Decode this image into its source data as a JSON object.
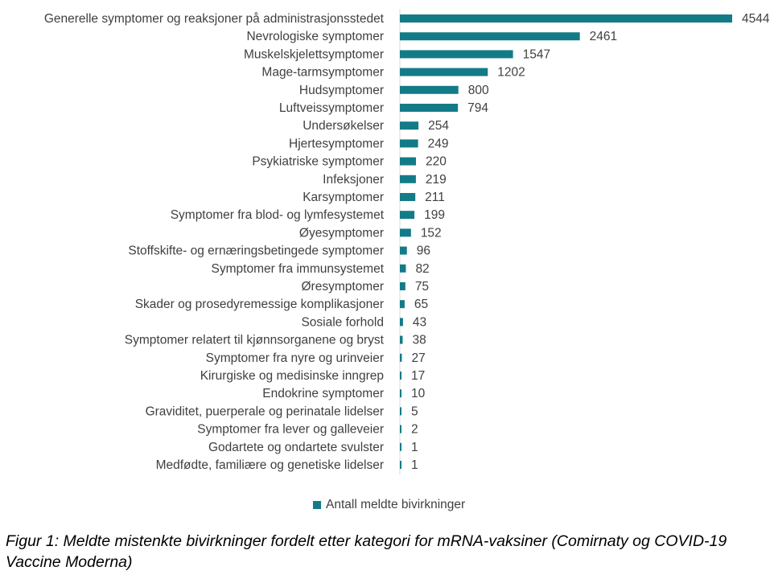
{
  "chart_data": {
    "type": "bar",
    "orientation": "horizontal",
    "categories": [
      "Generelle symptomer og reaksjoner på administrasjonsstedet",
      "Nevrologiske symptomer",
      "Muskelskjelettsymptomer",
      "Mage-tarmsymptomer",
      "Hudsymptomer",
      "Luftveissymptomer",
      "Undersøkelser",
      "Hjertesymptomer",
      "Psykiatriske symptomer",
      "Infeksjoner",
      "Karsymptomer",
      "Symptomer fra blod- og lymfesystemet",
      "Øyesymptomer",
      "Stoffskifte- og ernæringsbetingede symptomer",
      "Symptomer fra immunsystemet",
      "Øresymptomer",
      "Skader og prosedyremessige komplikasjoner",
      "Sosiale forhold",
      "Symptomer relatert til kjønnsorganene og bryst",
      "Symptomer fra nyre og urinveier",
      "Kirurgiske og medisinske inngrep",
      "Endokrine symptomer",
      "Graviditet, puerperale og perinatale lidelser",
      "Symptomer fra lever og galleveier",
      "Godartete og ondartete svulster",
      "Medfødte, familiære og genetiske lidelser"
    ],
    "series": [
      {
        "name": "Antall meldte bivirkninger",
        "color": "#137b87",
        "values": [
          4544,
          2461,
          1547,
          1202,
          800,
          794,
          254,
          249,
          220,
          219,
          211,
          199,
          152,
          96,
          82,
          75,
          65,
          43,
          38,
          27,
          17,
          10,
          5,
          2,
          1,
          1
        ]
      }
    ],
    "title": "",
    "xlabel": "",
    "ylabel": "",
    "xlim": [
      0,
      4544
    ],
    "grid": false,
    "legend_position": "bottom",
    "data_labels": true
  },
  "legend": {
    "label": "Antall meldte bivirkninger",
    "color": "#137b87"
  },
  "caption": "Figur 1: Meldte mistenkte bivirkninger fordelt etter kategori for mRNA-vaksiner (Comirnaty og COVID-19 Vaccine Moderna)"
}
